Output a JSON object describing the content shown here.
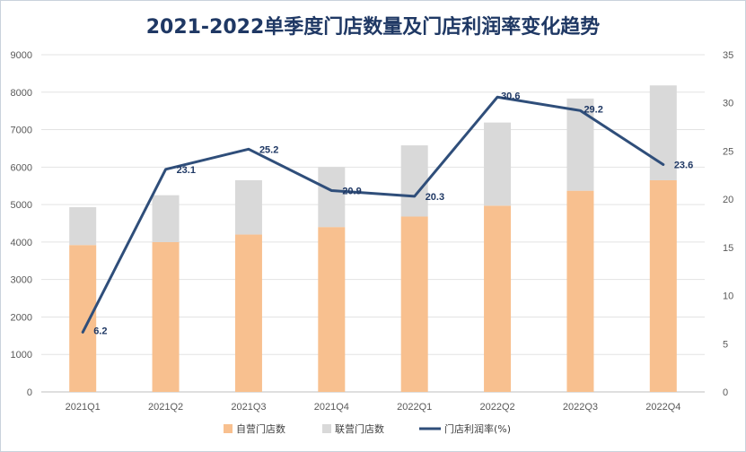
{
  "chart_data": {
    "type": "bar+line",
    "title": "2021-2022单季度门店数量及门店利润率变化趋势",
    "categories": [
      "2021Q1",
      "2021Q2",
      "2021Q3",
      "2021Q4",
      "2022Q1",
      "2022Q2",
      "2022Q3",
      "2022Q4"
    ],
    "series": [
      {
        "name": "自营门店数",
        "type": "stacked-bar",
        "axis": "left",
        "color": "#f8c08f",
        "values": [
          3920,
          4000,
          4200,
          4400,
          4680,
          4970,
          5370,
          5650
        ]
      },
      {
        "name": "联营门店数",
        "type": "stacked-bar",
        "axis": "left",
        "color": "#d9d9d9",
        "values": [
          1010,
          1250,
          1450,
          1600,
          1900,
          2220,
          2460,
          2530
        ]
      },
      {
        "name": "门店利润率(%)",
        "type": "line",
        "axis": "right",
        "color": "#2f4e7a",
        "values": [
          6.2,
          23.1,
          25.2,
          20.9,
          20.3,
          30.6,
          29.2,
          23.6
        ],
        "labels": [
          "6.2",
          "23.1",
          "25.2",
          "20.9",
          "20.3",
          "30.6",
          "29.2",
          "23.6"
        ]
      }
    ],
    "left_axis": {
      "min": 0,
      "max": 9000,
      "step": 1000,
      "ticks": [
        "0",
        "1000",
        "2000",
        "3000",
        "4000",
        "5000",
        "6000",
        "7000",
        "8000",
        "9000"
      ]
    },
    "right_axis": {
      "min": 0,
      "max": 35,
      "step": 5,
      "ticks": [
        "0",
        "5",
        "10",
        "15",
        "20",
        "25",
        "30",
        "35"
      ]
    },
    "grid": true,
    "legend_position": "bottom"
  }
}
